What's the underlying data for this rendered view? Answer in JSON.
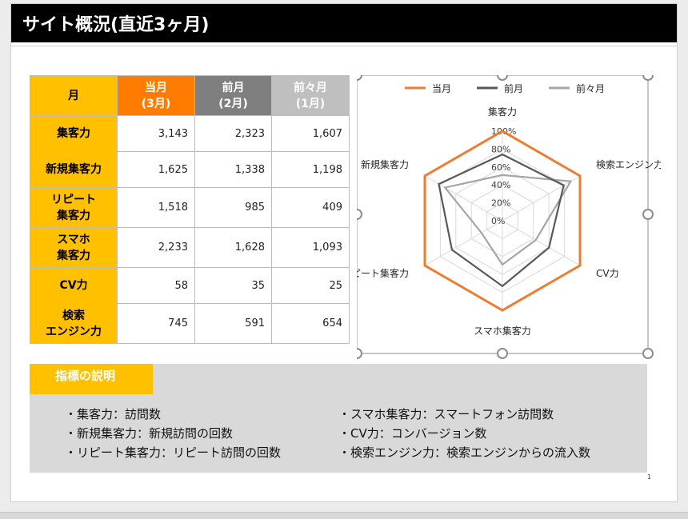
{
  "slide": {
    "title": "サイト概況(直近3ヶ月)",
    "page_number": "1"
  },
  "table": {
    "header": {
      "month_label": "月",
      "current": "当月\n(3月)",
      "previous": "前月\n(2月)",
      "two_months_ago": "前々月\n(1月)"
    },
    "rows": [
      {
        "label": "集客力",
        "current": "3,143",
        "previous": "2,323",
        "two_months_ago": "1,607"
      },
      {
        "label": "新規集客力",
        "current": "1,625",
        "previous": "1,338",
        "two_months_ago": "1,198"
      },
      {
        "label": "リピート\n集客力",
        "current": "1,518",
        "previous": "985",
        "two_months_ago": "409"
      },
      {
        "label": "スマホ\n集客力",
        "current": "2,233",
        "previous": "1,628",
        "two_months_ago": "1,093"
      },
      {
        "label": "CV力",
        "current": "58",
        "previous": "35",
        "two_months_ago": "25"
      },
      {
        "label": "検索\nエンジン力",
        "current": "745",
        "previous": "591",
        "two_months_ago": "654"
      }
    ]
  },
  "chart_data": {
    "type": "radar",
    "categories": [
      "集客力",
      "検索エンジン力",
      "CV力",
      "スマホ集客力",
      "リピート集客力",
      "新規集客力"
    ],
    "tick_labels": [
      "0%",
      "20%",
      "40%",
      "60%",
      "80%",
      "100%"
    ],
    "range": [
      0,
      100
    ],
    "legend_position": "top",
    "series": [
      {
        "name": "当月",
        "color": "#ed7d31",
        "values": [
          100,
          100,
          100,
          100,
          100,
          100
        ]
      },
      {
        "name": "前月",
        "color": "#595959",
        "values": [
          74,
          79,
          60,
          73,
          65,
          82
        ]
      },
      {
        "name": "前々月",
        "color": "#a6a6a6",
        "values": [
          51,
          88,
          43,
          49,
          27,
          74
        ]
      }
    ]
  },
  "legend": {
    "title": "指標の説明",
    "items_left": [
      "・集客力：訪問数",
      "・新規集客力：新規訪問の回数",
      "・リピート集客力：リピート訪問の回数"
    ],
    "items_right": [
      "・スマホ集客力：スマートフォン訪問数",
      "・CV力：コンバージョン数",
      "・検索エンジン力：検索エンジンからの流入数"
    ]
  }
}
